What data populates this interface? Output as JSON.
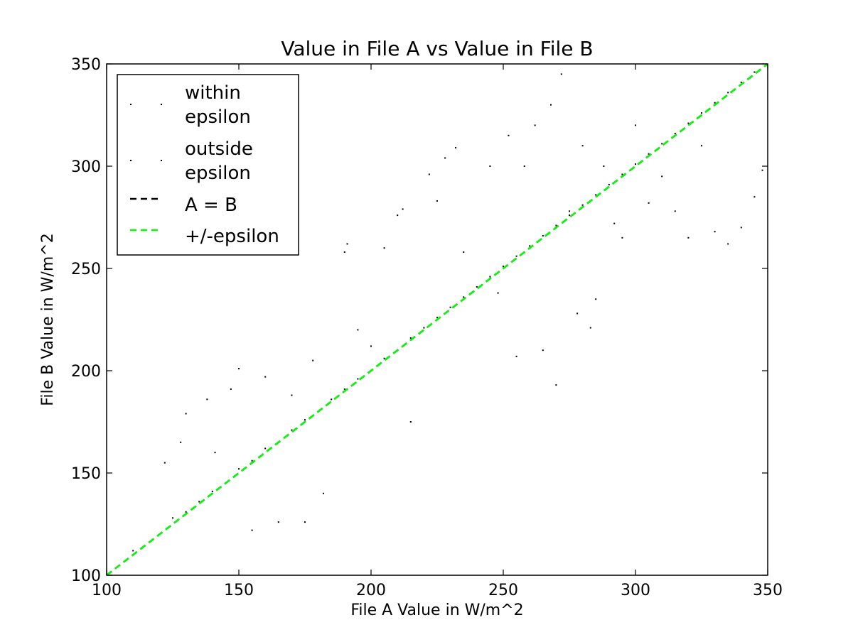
{
  "chart_data": {
    "type": "scatter",
    "title": "Value in File A vs Value in File B",
    "xlabel": "File A Value in W/m^2",
    "ylabel": "File B Value in W/m^2",
    "xlim": [
      100,
      350
    ],
    "ylim": [
      100,
      350
    ],
    "xticks": [
      "100",
      "150",
      "200",
      "250",
      "300",
      "350"
    ],
    "yticks": [
      "100",
      "150",
      "200",
      "250",
      "300",
      "350"
    ],
    "grid": false,
    "legend_position": "upper-left",
    "legend": [
      {
        "label_lines": [
          "within",
          "epsilon"
        ],
        "marker": "dot",
        "color": "#000000"
      },
      {
        "label_lines": [
          "outside",
          "epsilon"
        ],
        "marker": "dot",
        "color": "#000000"
      },
      {
        "label_lines": [
          "A = B"
        ],
        "marker": "dashed-line",
        "color": "#000000"
      },
      {
        "label_lines": [
          "+/-epsilon"
        ],
        "marker": "dashed-line",
        "color": "#00ff00"
      }
    ],
    "series": [
      {
        "name": "within epsilon",
        "kind": "points",
        "color": "#000000",
        "sample_points": [
          [
            110,
            112
          ],
          [
            120,
            120
          ],
          [
            125,
            128
          ],
          [
            130,
            131
          ],
          [
            135,
            136
          ],
          [
            140,
            141
          ],
          [
            145,
            145
          ],
          [
            150,
            152
          ],
          [
            155,
            156
          ],
          [
            160,
            162
          ],
          [
            165,
            165
          ],
          [
            170,
            171
          ],
          [
            175,
            176
          ],
          [
            180,
            180
          ],
          [
            185,
            186
          ],
          [
            190,
            191
          ],
          [
            195,
            196
          ],
          [
            200,
            200
          ],
          [
            205,
            206
          ],
          [
            210,
            210
          ],
          [
            215,
            216
          ],
          [
            220,
            221
          ],
          [
            225,
            226
          ],
          [
            230,
            231
          ],
          [
            235,
            236
          ],
          [
            240,
            241
          ],
          [
            245,
            246
          ],
          [
            250,
            251
          ],
          [
            255,
            256
          ],
          [
            260,
            261
          ],
          [
            265,
            266
          ],
          [
            270,
            271
          ],
          [
            275,
            276
          ],
          [
            280,
            281
          ],
          [
            285,
            286
          ],
          [
            290,
            291
          ],
          [
            295,
            296
          ],
          [
            300,
            301
          ],
          [
            305,
            306
          ],
          [
            310,
            311
          ],
          [
            315,
            316
          ],
          [
            320,
            321
          ],
          [
            325,
            326
          ],
          [
            330,
            331
          ],
          [
            335,
            336
          ],
          [
            340,
            341
          ],
          [
            345,
            346
          ]
        ]
      },
      {
        "name": "outside epsilon",
        "kind": "points",
        "color": "#000000",
        "sample_points": [
          [
            122,
            155
          ],
          [
            128,
            165
          ],
          [
            130,
            179
          ],
          [
            138,
            186
          ],
          [
            141,
            160
          ],
          [
            147,
            191
          ],
          [
            150,
            201
          ],
          [
            155,
            122
          ],
          [
            160,
            197
          ],
          [
            165,
            126
          ],
          [
            170,
            188
          ],
          [
            175,
            126
          ],
          [
            178,
            205
          ],
          [
            182,
            140
          ],
          [
            190,
            258
          ],
          [
            191,
            262
          ],
          [
            195,
            220
          ],
          [
            200,
            212
          ],
          [
            205,
            260
          ],
          [
            210,
            276
          ],
          [
            212,
            279
          ],
          [
            215,
            175
          ],
          [
            222,
            296
          ],
          [
            225,
            283
          ],
          [
            228,
            304
          ],
          [
            232,
            309
          ],
          [
            235,
            258
          ],
          [
            245,
            300
          ],
          [
            248,
            238
          ],
          [
            252,
            315
          ],
          [
            255,
            207
          ],
          [
            258,
            300
          ],
          [
            262,
            320
          ],
          [
            265,
            210
          ],
          [
            268,
            330
          ],
          [
            270,
            193
          ],
          [
            272,
            345
          ],
          [
            275,
            278
          ],
          [
            278,
            228
          ],
          [
            280,
            310
          ],
          [
            283,
            221
          ],
          [
            285,
            235
          ],
          [
            288,
            300
          ],
          [
            292,
            272
          ],
          [
            295,
            265
          ],
          [
            300,
            320
          ],
          [
            305,
            282
          ],
          [
            310,
            295
          ],
          [
            315,
            278
          ],
          [
            320,
            265
          ],
          [
            325,
            310
          ],
          [
            330,
            268
          ],
          [
            335,
            262
          ],
          [
            340,
            270
          ],
          [
            345,
            285
          ],
          [
            348,
            298
          ]
        ]
      },
      {
        "name": "A = B",
        "kind": "dashed-line",
        "color": "#000000",
        "x": [
          100,
          350
        ],
        "y": [
          100,
          350
        ]
      },
      {
        "name": "+/-epsilon",
        "kind": "dashed-line",
        "color": "#00ff00",
        "x": [
          100,
          350
        ],
        "y": [
          100,
          350
        ]
      }
    ]
  }
}
